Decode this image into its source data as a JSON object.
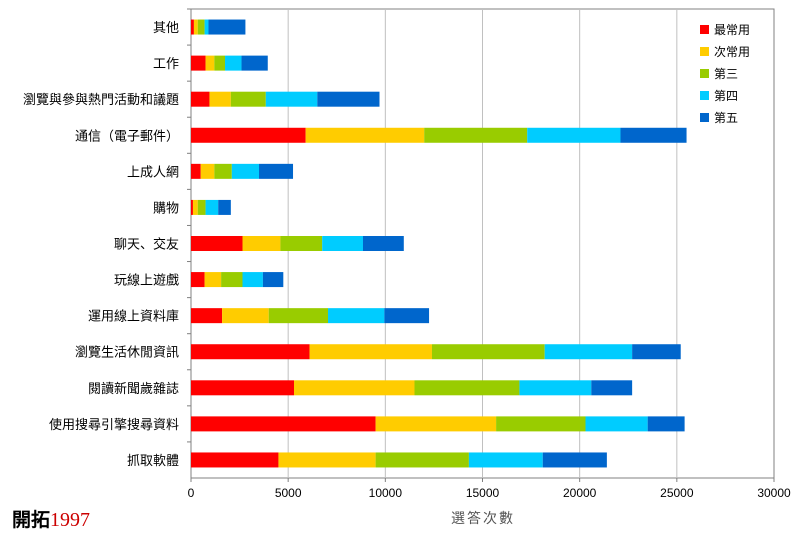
{
  "brand": {
    "name": "開拓",
    "year": "1997"
  },
  "chart_data": {
    "type": "bar",
    "orientation": "horizontal",
    "stacked": true,
    "title": "",
    "xlabel": "選答次數",
    "ylabel": "",
    "xlim": [
      0,
      30000
    ],
    "xticks": [
      "0",
      "5000",
      "10000",
      "15000",
      "20000",
      "25000",
      "30000"
    ],
    "grid": true,
    "legend_position": "top-right",
    "categories": [
      "其他",
      "工作",
      "瀏覽與參與熱門活動和議題",
      "通信（電子郵件）",
      "上成人網",
      "購物",
      "聊天、交友",
      "玩線上遊戲",
      "運用線上資料庫",
      "瀏覽生活休閒資訊",
      "閱讀新聞歲雜誌",
      "使用搜尋引擎搜尋資料",
      "抓取軟體"
    ],
    "series": [
      {
        "name": "最常用",
        "color": "#ff0000",
        "values": [
          150,
          750,
          950,
          5900,
          500,
          100,
          2650,
          700,
          1600,
          6100,
          5300,
          9500,
          4500
        ]
      },
      {
        "name": "次常用",
        "color": "#ffcc00",
        "values": [
          200,
          450,
          1100,
          6100,
          700,
          250,
          1950,
          850,
          2400,
          6300,
          6200,
          6200,
          5000
        ]
      },
      {
        "name": "第三",
        "color": "#99cc00",
        "values": [
          350,
          550,
          1800,
          5300,
          900,
          400,
          2150,
          1100,
          3050,
          5800,
          5400,
          4600,
          4800
        ]
      },
      {
        "name": "第四",
        "color": "#00ccff",
        "values": [
          200,
          850,
          2650,
          4800,
          1400,
          650,
          2100,
          1050,
          2900,
          4500,
          3700,
          3200,
          3800
        ]
      },
      {
        "name": "第五",
        "color": "#0066cc",
        "values": [
          1900,
          1350,
          3200,
          3400,
          1750,
          650,
          2100,
          1050,
          2300,
          2500,
          2100,
          1900,
          3300
        ]
      }
    ]
  }
}
